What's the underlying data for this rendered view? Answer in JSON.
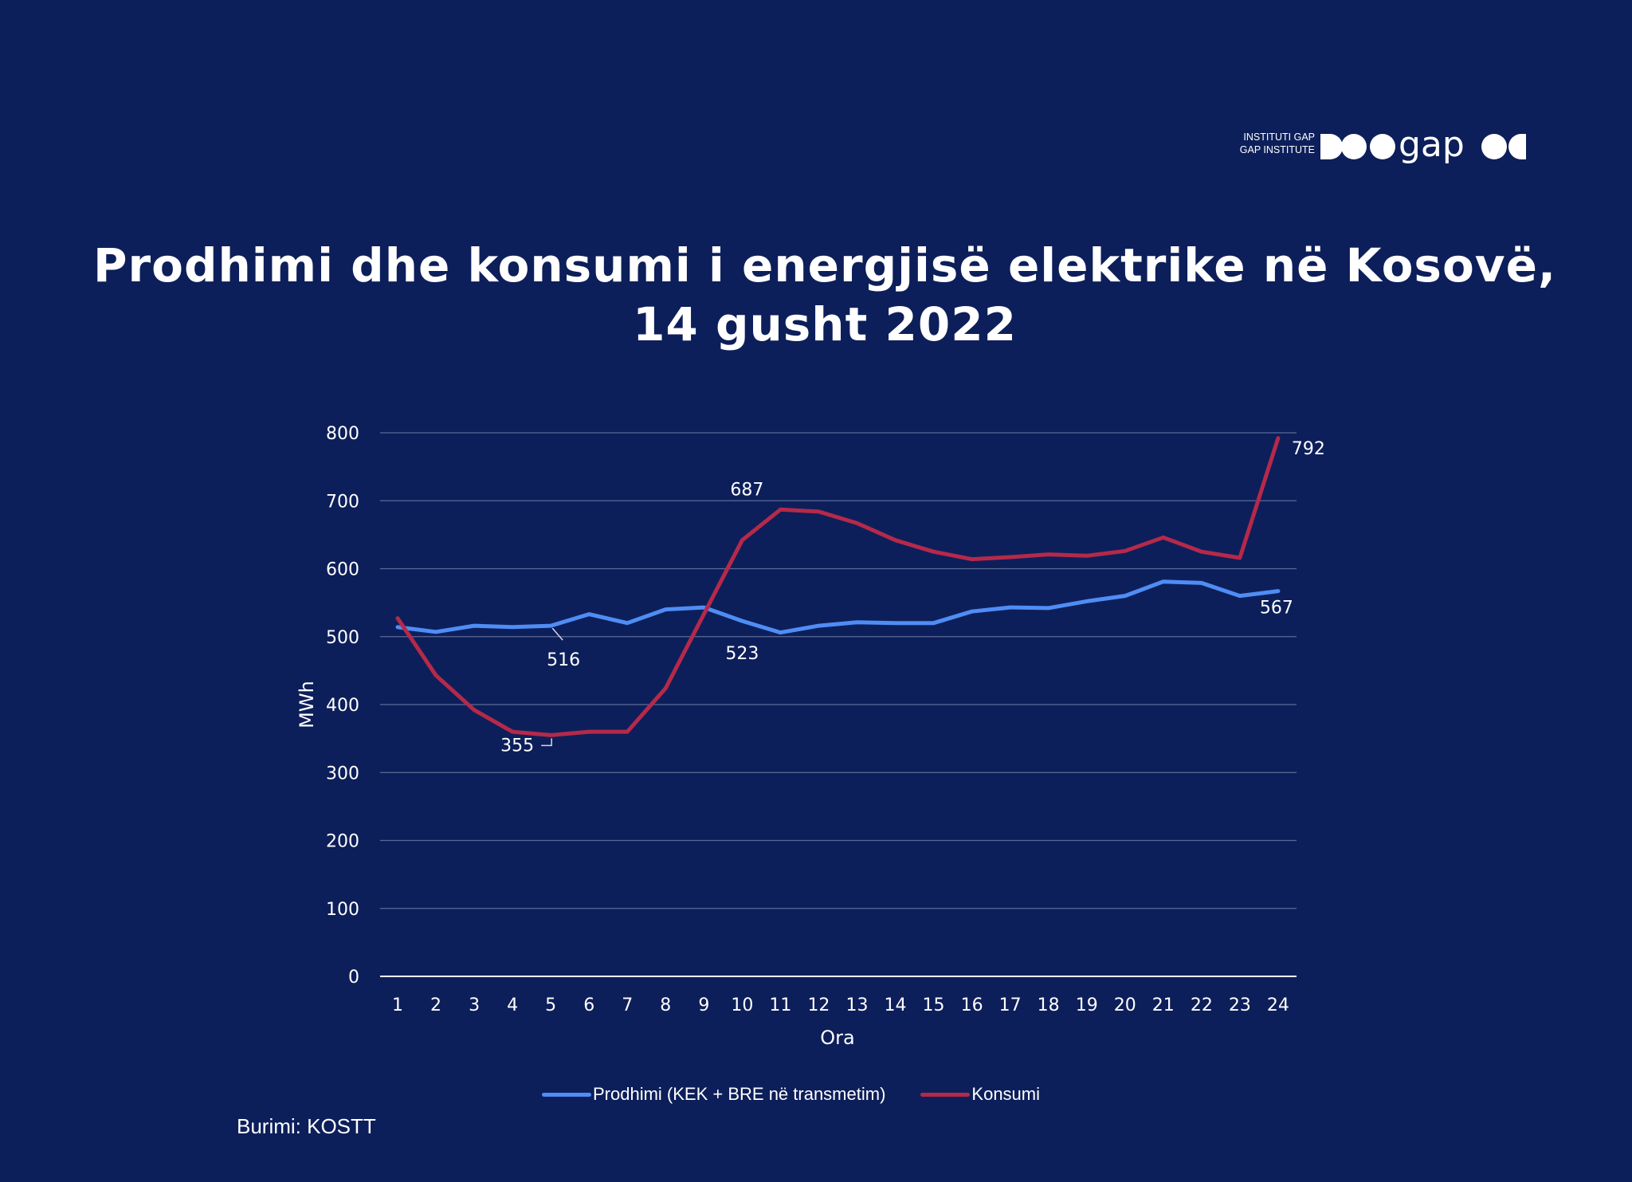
{
  "logo": {
    "text_line1": "INSTITUTI GAP",
    "text_line2": "GAP INSTITUTE",
    "wordmark": "gap"
  },
  "title_line1": "Prodhimi dhe konsumi i energjisë elektrike në Kosovë,",
  "title_line2": "14 gusht 2022",
  "source": "Burimi: KOSTT",
  "colors": {
    "background": "#0d1f5a",
    "prodhimi": "#4f8df5",
    "konsumi": "#b5294a",
    "gridline": "#5b6b96"
  },
  "chart_data": {
    "type": "line",
    "xlabel": "Ora",
    "ylabel": "MWh",
    "ylim": [
      0,
      800
    ],
    "yticks": [
      0,
      100,
      200,
      300,
      400,
      500,
      600,
      700,
      800
    ],
    "categories": [
      "1",
      "2",
      "3",
      "4",
      "5",
      "6",
      "7",
      "8",
      "9",
      "10",
      "11",
      "12",
      "13",
      "14",
      "15",
      "16",
      "17",
      "18",
      "19",
      "20",
      "21",
      "22",
      "23",
      "24"
    ],
    "grid": true,
    "legend_position": "bottom",
    "series": [
      {
        "name": "Prodhimi (KEK + BRE në transmetim)",
        "color": "#4f8df5",
        "values": [
          514,
          507,
          516,
          514,
          516,
          533,
          520,
          540,
          543,
          523,
          506,
          516,
          521,
          520,
          520,
          537,
          543,
          542,
          552,
          560,
          581,
          579,
          560,
          567
        ]
      },
      {
        "name": "Konsumi",
        "color": "#b5294a",
        "values": [
          527,
          443,
          392,
          360,
          355,
          360,
          360,
          424,
          533,
          642,
          687,
          684,
          667,
          642,
          625,
          614,
          617,
          621,
          619,
          626,
          646,
          625,
          616,
          792
        ]
      }
    ],
    "annotations": [
      {
        "series": 0,
        "index": 4,
        "text": "516"
      },
      {
        "series": 0,
        "index": 9,
        "text": "523"
      },
      {
        "series": 0,
        "index": 23,
        "text": "567"
      },
      {
        "series": 1,
        "index": 4,
        "text": "355"
      },
      {
        "series": 1,
        "index": 10,
        "text": "687"
      },
      {
        "series": 1,
        "index": 23,
        "text": "792"
      }
    ]
  }
}
